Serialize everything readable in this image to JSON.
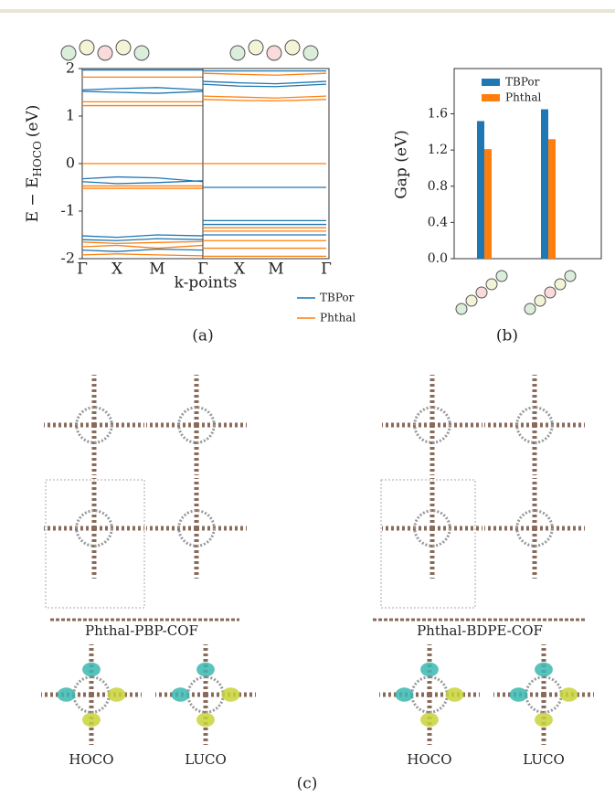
{
  "chart_data": [
    {
      "type": "line",
      "categories": [
        "Γ",
        "X",
        "M",
        "Γ"
      ],
      "ylim": [
        -2,
        2
      ],
      "yticks": [
        -2,
        -1,
        0,
        1,
        2
      ],
      "ylabel": "E − E",
      "ylabel_sub": "HOCO",
      "ylabel_unit": "(eV)",
      "xlabel": "k-points",
      "caption": "(a)",
      "series": [
        {
          "name": "TBPor",
          "color": "#1f77b4",
          "values": [
            [
              1.97,
              1.97,
              1.97,
              1.97
            ],
            [
              1.55,
              1.58,
              1.6,
              1.55
            ],
            [
              1.52,
              1.5,
              1.48,
              1.52
            ],
            [
              -0.32,
              -0.28,
              -0.3,
              -0.38
            ],
            [
              -0.38,
              -0.42,
              -0.4,
              -0.36
            ],
            [
              -1.52,
              -1.55,
              -1.5,
              -1.52
            ],
            [
              -1.6,
              -1.62,
              -1.58,
              -1.6
            ],
            [
              -1.82,
              -1.85,
              -1.8,
              -1.82
            ]
          ]
        },
        {
          "name": "Phthal",
          "color": "#ff7f0e",
          "values": [
            [
              1.82,
              1.82,
              1.82,
              1.82
            ],
            [
              1.3,
              1.3,
              1.3,
              1.3
            ],
            [
              1.22,
              1.22,
              1.22,
              1.22
            ],
            [
              0,
              0,
              0,
              0
            ],
            [
              -0.47,
              -0.47,
              -0.47,
              -0.47
            ],
            [
              -0.52,
              -0.52,
              -0.52,
              -0.52
            ],
            [
              -1.65,
              -1.68,
              -1.66,
              -1.64
            ],
            [
              -1.75,
              -1.72,
              -1.78,
              -1.72
            ],
            [
              -1.92,
              -1.9,
              -1.92,
              -1.94
            ]
          ]
        }
      ]
    },
    {
      "type": "line",
      "categories": [
        null,
        "X",
        "M",
        "Γ"
      ],
      "ylim": [
        -2,
        2
      ],
      "legend": "below",
      "series": [
        {
          "name": "TBPor",
          "color": "#1f77b4",
          "values": [
            [
              1.95,
              1.95,
              1.95,
              1.95
            ],
            [
              1.73,
              1.7,
              1.68,
              1.73
            ],
            [
              1.67,
              1.63,
              1.62,
              1.67
            ],
            [
              -0.5,
              -0.5,
              -0.5,
              -0.5
            ],
            [
              -1.2,
              -1.2,
              -1.2,
              -1.2
            ],
            [
              -1.28,
              -1.28,
              -1.28,
              -1.28
            ],
            [
              -1.5,
              -1.5,
              -1.5,
              -1.5
            ]
          ]
        },
        {
          "name": "Phthal",
          "color": "#ff7f0e",
          "values": [
            [
              1.9,
              1.88,
              1.86,
              1.9
            ],
            [
              1.42,
              1.4,
              1.38,
              1.42
            ],
            [
              1.35,
              1.33,
              1.32,
              1.35
            ],
            [
              0,
              0,
              0,
              0
            ],
            [
              -1.35,
              -1.35,
              -1.35,
              -1.35
            ],
            [
              -1.42,
              -1.42,
              -1.42,
              -1.42
            ],
            [
              -1.62,
              -1.62,
              -1.62,
              -1.62
            ],
            [
              -1.78,
              -1.78,
              -1.78,
              -1.78
            ],
            [
              -1.95,
              -1.95,
              -1.95,
              -1.95
            ]
          ]
        }
      ]
    },
    {
      "type": "bar",
      "categories": [
        null,
        null
      ],
      "ylim": [
        0,
        2.1
      ],
      "ylabel": "Gap (eV)",
      "caption": "(b)",
      "legend": "upper center",
      "yticks": [
        {
          "value": 0,
          "label": "0.0"
        },
        {
          "value": 0.4,
          "label": "0.4"
        },
        {
          "value": 0.8,
          "label": "0.8"
        },
        {
          "value": 1.2,
          "label": "1.2"
        },
        {
          "value": 1.6,
          "label": "1.6"
        }
      ],
      "series": [
        {
          "name": "TBPor",
          "color": "#1f77b4",
          "values": [
            1.52,
            1.65
          ]
        },
        {
          "name": "Phthal",
          "color": "#ff7f0e",
          "values": [
            1.21,
            1.32
          ]
        }
      ]
    }
  ],
  "panel_c": {
    "structures": [
      "Phthal-PBP-COF",
      "Phthal-BDPE-COF"
    ],
    "orbitals": [
      "HOCO",
      "LUCO",
      "HOCO",
      "LUCO"
    ],
    "caption": "(c)"
  }
}
